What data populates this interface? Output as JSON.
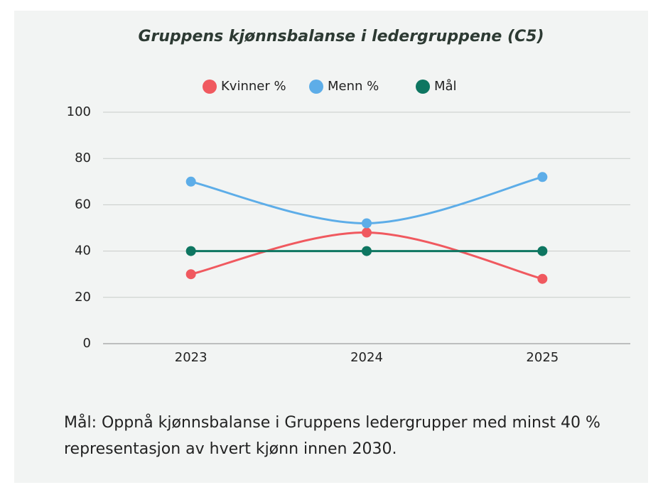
{
  "chart_data": {
    "type": "line",
    "title": "Gruppens kjønnsbalanse i ledergruppene (C5)",
    "categories": [
      "2023",
      "2024",
      "2025"
    ],
    "series": [
      {
        "name": "Kvinner %",
        "color": "#f0595f",
        "values": [
          30,
          48,
          28
        ]
      },
      {
        "name": "Menn %",
        "color": "#5dade8",
        "values": [
          70,
          52,
          72
        ]
      },
      {
        "name": "Mål",
        "color": "#0e7661",
        "values": [
          40,
          40,
          40
        ]
      }
    ],
    "ylim": [
      0,
      100
    ],
    "yticks": [
      0,
      20,
      40,
      60,
      80,
      100
    ],
    "grid": true,
    "smooth": true,
    "legend": "top",
    "caption": "Mål: Oppnå kjønnsbalanse i Gruppens ledergrupper med minst 40 % representasjon av hvert kjønn innen 2030."
  }
}
